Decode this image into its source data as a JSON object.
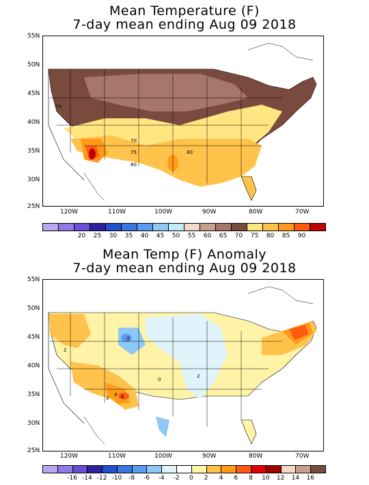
{
  "panel1": {
    "title_line1": "Mean Temperature (F)",
    "title_line2": "7-day mean ending Aug 09 2018",
    "lat_labels": [
      "55N",
      "50N",
      "45N",
      "40N",
      "35N",
      "30N",
      "25N"
    ],
    "lon_labels": [
      "120W",
      "110W",
      "100W",
      "90W",
      "80W",
      "70W"
    ],
    "contour_labels": [
      "70",
      "70",
      "75",
      "80",
      "80"
    ],
    "colorbar_ticks": [
      "20",
      "25",
      "30",
      "35",
      "40",
      "45",
      "50",
      "55",
      "60",
      "65",
      "70",
      "75",
      "80",
      "85",
      "90"
    ],
    "colorbar_colors": [
      "#b9a8f0",
      "#8f7be6",
      "#6a4fd6",
      "#2e1f9c",
      "#1e50d0",
      "#3a78e0",
      "#5c9cf0",
      "#8ec8f5",
      "#bfeefa",
      "#f2d9c8",
      "#c8a08c",
      "#a6776a",
      "#7a4a3e",
      "#ffe680",
      "#ffc24a",
      "#ff9a1a",
      "#ff5a10",
      "#c00000"
    ]
  },
  "panel2": {
    "title_line1": "Mean Temp (F) Anomaly",
    "title_line2": "7-day mean ending Aug 09 2018",
    "lat_labels": [
      "55N",
      "50N",
      "45N",
      "40N",
      "35N",
      "30N",
      "25N"
    ],
    "lon_labels": [
      "120W",
      "110W",
      "100W",
      "90W",
      "80W",
      "70W"
    ],
    "contour_labels": [
      "-2",
      "2",
      "2",
      "0",
      "2",
      "4",
      "6"
    ],
    "colorbar_ticks": [
      "-16",
      "-14",
      "-12",
      "-10",
      "-8",
      "-6",
      "-4",
      "-2",
      "0",
      "2",
      "4",
      "6",
      "8",
      "10",
      "12",
      "14",
      "16"
    ],
    "colorbar_colors": [
      "#b9a8f0",
      "#8f7be6",
      "#6a4fd6",
      "#2e1f9c",
      "#1e50d0",
      "#3a78e0",
      "#5c9cf0",
      "#8ec8f5",
      "#dff4fb",
      "#ffffff",
      "#fff3a8",
      "#ffc24a",
      "#ff9a1a",
      "#ff5a10",
      "#e00000",
      "#a00000",
      "#f2d9c8",
      "#c8a08c",
      "#7a4a3e"
    ]
  }
}
